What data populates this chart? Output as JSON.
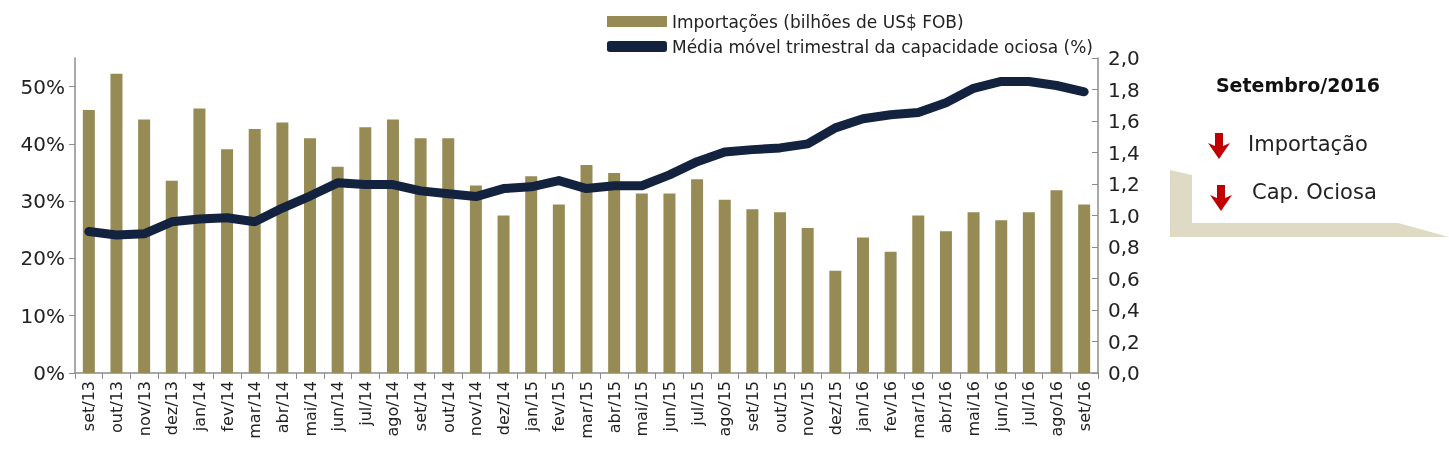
{
  "chart_data": {
    "type": "bar",
    "categories": [
      "set/13",
      "out/13",
      "nov/13",
      "dez/13",
      "jan/14",
      "fev/14",
      "mar/14",
      "abr/14",
      "mai/14",
      "jun/14",
      "jul/14",
      "ago/14",
      "set/14",
      "out/14",
      "nov/14",
      "dez/14",
      "jan/15",
      "fev/15",
      "mar/15",
      "abr/15",
      "mai/15",
      "jun/15",
      "jul/15",
      "ago/15",
      "set/15",
      "out/15",
      "nov/15",
      "dez/15",
      "jan/16",
      "fev/16",
      "mar/16",
      "abr/16",
      "mai/16",
      "jun/16",
      "jul/16",
      "ago/16",
      "set/16"
    ],
    "series": [
      {
        "name": "Importações (bilhões de US$ FOB)",
        "axis": "y2",
        "color": "#978b55",
        "values": [
          1.67,
          1.9,
          1.61,
          1.22,
          1.68,
          1.42,
          1.55,
          1.59,
          1.49,
          1.31,
          1.56,
          1.61,
          1.49,
          1.49,
          1.19,
          1.0,
          1.25,
          1.07,
          1.32,
          1.27,
          1.14,
          1.14,
          1.23,
          1.1,
          1.04,
          1.02,
          0.92,
          0.65,
          0.86,
          0.77,
          1.0,
          0.9,
          1.02,
          0.97,
          1.02,
          1.16,
          1.07
        ]
      },
      {
        "name": "Média móvel trimestral da capacidade ociosa (%)",
        "type": "line",
        "color": "#13233f",
        "values": [
          24.7,
          24.1,
          24.3,
          26.4,
          26.9,
          27.1,
          26.4,
          28.8,
          30.9,
          33.2,
          32.9,
          32.9,
          31.8,
          31.3,
          30.8,
          32.2,
          32.5,
          33.6,
          32.2,
          32.7,
          32.7,
          34.6,
          36.9,
          38.6,
          39.0,
          39.3,
          40.0,
          42.8,
          44.4,
          45.1,
          45.5,
          47.2,
          49.7,
          50.9,
          50.9,
          50.2,
          49.1
        ]
      }
    ],
    "ylim": [
      0,
      55
    ],
    "yticks": [
      {
        "value": 0,
        "label": "0%"
      },
      {
        "value": 10,
        "label": "10%"
      },
      {
        "value": 20,
        "label": "20%"
      },
      {
        "value": 30,
        "label": "30%"
      },
      {
        "value": 40,
        "label": "40%"
      },
      {
        "value": 50,
        "label": "50%"
      }
    ],
    "y2lim": [
      0,
      2
    ],
    "y2ticks": [
      {
        "value": 0,
        "label": "0,0"
      },
      {
        "value": 0.2,
        "label": "0,2"
      },
      {
        "value": 0.4,
        "label": "0,4"
      },
      {
        "value": 0.6,
        "label": "0,6"
      },
      {
        "value": 0.8,
        "label": "0,8"
      },
      {
        "value": 1,
        "label": "1,0"
      },
      {
        "value": 1.2,
        "label": "1,2"
      },
      {
        "value": 1.4,
        "label": "1,4"
      },
      {
        "value": 1.6,
        "label": "1,6"
      },
      {
        "value": 1.8,
        "label": "1,8"
      },
      {
        "value": 2,
        "label": "2,0"
      }
    ],
    "grid": false,
    "legend": "top",
    "marker": "none",
    "line_style": "solid",
    "annotations": [
      "Setembro/2016",
      "Importação",
      "Cap. Ociosa"
    ]
  }
}
